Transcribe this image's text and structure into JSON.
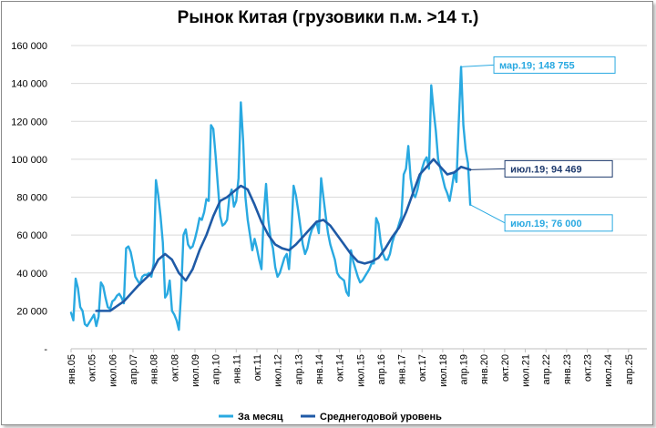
{
  "chart_data": {
    "type": "line",
    "title": "Рынок Китая (грузовики п.м. >14 т.)",
    "xlabel": "",
    "ylabel": "",
    "ylim": [
      0,
      160000
    ],
    "y_ticks": [
      "-",
      "20 000",
      "40 000",
      "60 000",
      "80 000",
      "100 000",
      "120 000",
      "140 000",
      "160 000"
    ],
    "x_tick_labels": [
      "янв.05",
      "окт.05",
      "июл.06",
      "апр.07",
      "янв.08",
      "окт.08",
      "июл.09",
      "апр.10",
      "янв.11",
      "окт.11",
      "июл.12",
      "апр.13",
      "янв.14",
      "окт.14",
      "июл.15",
      "апр.16",
      "янв.17",
      "окт.17",
      "июл.18",
      "апр.19",
      "янв.20",
      "окт.20",
      "июл.21",
      "апр.22",
      "янв.23",
      "окт.23",
      "июл.24",
      "апр.25"
    ],
    "grid": true,
    "legend_position": "bottom",
    "colors": {
      "monthly": "#29a9e1",
      "average": "#1f5aa6"
    },
    "series": [
      {
        "name": "За месяц",
        "points": [
          [
            "2005-01",
            19000
          ],
          [
            "2005-02",
            15000
          ],
          [
            "2005-03",
            37000
          ],
          [
            "2005-04",
            32000
          ],
          [
            "2005-05",
            22000
          ],
          [
            "2005-06",
            20000
          ],
          [
            "2005-07",
            13000
          ],
          [
            "2005-08",
            12000
          ],
          [
            "2005-09",
            14000
          ],
          [
            "2005-10",
            16000
          ],
          [
            "2005-11",
            18000
          ],
          [
            "2005-12",
            12000
          ],
          [
            "2006-01",
            17000
          ],
          [
            "2006-02",
            35000
          ],
          [
            "2006-03",
            33000
          ],
          [
            "2006-04",
            27000
          ],
          [
            "2006-05",
            22000
          ],
          [
            "2006-06",
            21000
          ],
          [
            "2006-07",
            25000
          ],
          [
            "2006-08",
            26000
          ],
          [
            "2006-09",
            28000
          ],
          [
            "2006-10",
            29000
          ],
          [
            "2006-11",
            27000
          ],
          [
            "2006-12",
            24000
          ],
          [
            "2007-01",
            53000
          ],
          [
            "2007-02",
            54000
          ],
          [
            "2007-03",
            51000
          ],
          [
            "2007-04",
            45000
          ],
          [
            "2007-05",
            38000
          ],
          [
            "2007-06",
            36000
          ],
          [
            "2007-07",
            34000
          ],
          [
            "2007-08",
            38000
          ],
          [
            "2007-09",
            39000
          ],
          [
            "2007-10",
            39000
          ],
          [
            "2007-11",
            40000
          ],
          [
            "2007-12",
            38000
          ],
          [
            "2008-01",
            45000
          ],
          [
            "2008-02",
            89000
          ],
          [
            "2008-03",
            81000
          ],
          [
            "2008-04",
            70000
          ],
          [
            "2008-05",
            56000
          ],
          [
            "2008-06",
            27000
          ],
          [
            "2008-07",
            29000
          ],
          [
            "2008-08",
            36000
          ],
          [
            "2008-09",
            20000
          ],
          [
            "2008-10",
            18000
          ],
          [
            "2008-11",
            15000
          ],
          [
            "2008-12",
            10000
          ],
          [
            "2009-01",
            30000
          ],
          [
            "2009-02",
            60000
          ],
          [
            "2009-03",
            63000
          ],
          [
            "2009-04",
            55000
          ],
          [
            "2009-05",
            53000
          ],
          [
            "2009-06",
            54000
          ],
          [
            "2009-07",
            58000
          ],
          [
            "2009-08",
            63000
          ],
          [
            "2009-09",
            69000
          ],
          [
            "2009-10",
            68000
          ],
          [
            "2009-11",
            72000
          ],
          [
            "2009-12",
            79000
          ],
          [
            "2010-01",
            78000
          ],
          [
            "2010-02",
            118000
          ],
          [
            "2010-03",
            116000
          ],
          [
            "2010-04",
            102000
          ],
          [
            "2010-05",
            86000
          ],
          [
            "2010-06",
            70000
          ],
          [
            "2010-07",
            65000
          ],
          [
            "2010-08",
            66000
          ],
          [
            "2010-09",
            68000
          ],
          [
            "2010-10",
            80000
          ],
          [
            "2010-11",
            84000
          ],
          [
            "2010-12",
            75000
          ],
          [
            "2011-01",
            78000
          ],
          [
            "2011-02",
            90000
          ],
          [
            "2011-03",
            130000
          ],
          [
            "2011-04",
            110000
          ],
          [
            "2011-05",
            80000
          ],
          [
            "2011-06",
            68000
          ],
          [
            "2011-07",
            60000
          ],
          [
            "2011-08",
            52000
          ],
          [
            "2011-09",
            58000
          ],
          [
            "2011-10",
            53000
          ],
          [
            "2011-11",
            47000
          ],
          [
            "2011-12",
            42000
          ],
          [
            "2012-01",
            71000
          ],
          [
            "2012-02",
            87000
          ],
          [
            "2012-03",
            68000
          ],
          [
            "2012-04",
            58000
          ],
          [
            "2012-05",
            53000
          ],
          [
            "2012-06",
            43000
          ],
          [
            "2012-07",
            38000
          ],
          [
            "2012-08",
            40000
          ],
          [
            "2012-09",
            44000
          ],
          [
            "2012-10",
            48000
          ],
          [
            "2012-11",
            50000
          ],
          [
            "2012-12",
            42000
          ],
          [
            "2013-01",
            60000
          ],
          [
            "2013-02",
            86000
          ],
          [
            "2013-03",
            81000
          ],
          [
            "2013-04",
            73000
          ],
          [
            "2013-05",
            64000
          ],
          [
            "2013-06",
            55000
          ],
          [
            "2013-07",
            50000
          ],
          [
            "2013-08",
            53000
          ],
          [
            "2013-09",
            59000
          ],
          [
            "2013-10",
            63000
          ],
          [
            "2013-11",
            65000
          ],
          [
            "2013-12",
            67000
          ],
          [
            "2014-01",
            61000
          ],
          [
            "2014-02",
            90000
          ],
          [
            "2014-03",
            80000
          ],
          [
            "2014-04",
            70000
          ],
          [
            "2014-05",
            61000
          ],
          [
            "2014-06",
            55000
          ],
          [
            "2014-07",
            51000
          ],
          [
            "2014-08",
            47000
          ],
          [
            "2014-09",
            40000
          ],
          [
            "2014-10",
            38000
          ],
          [
            "2014-11",
            37000
          ],
          [
            "2014-12",
            36000
          ],
          [
            "2015-01",
            30000
          ],
          [
            "2015-02",
            28000
          ],
          [
            "2015-03",
            52000
          ],
          [
            "2015-04",
            46000
          ],
          [
            "2015-05",
            42000
          ],
          [
            "2015-06",
            38000
          ],
          [
            "2015-07",
            35000
          ],
          [
            "2015-08",
            36000
          ],
          [
            "2015-09",
            38000
          ],
          [
            "2015-10",
            40000
          ],
          [
            "2015-11",
            42000
          ],
          [
            "2015-12",
            45000
          ],
          [
            "2016-01",
            45000
          ],
          [
            "2016-02",
            69000
          ],
          [
            "2016-03",
            66000
          ],
          [
            "2016-04",
            56000
          ],
          [
            "2016-05",
            50000
          ],
          [
            "2016-06",
            47000
          ],
          [
            "2016-07",
            47000
          ],
          [
            "2016-08",
            50000
          ],
          [
            "2016-09",
            56000
          ],
          [
            "2016-10",
            60000
          ],
          [
            "2016-11",
            62000
          ],
          [
            "2016-12",
            66000
          ],
          [
            "2017-01",
            70000
          ],
          [
            "2017-02",
            92000
          ],
          [
            "2017-03",
            95000
          ],
          [
            "2017-04",
            107000
          ],
          [
            "2017-05",
            90000
          ],
          [
            "2017-06",
            82000
          ],
          [
            "2017-07",
            80000
          ],
          [
            "2017-08",
            84000
          ],
          [
            "2017-09",
            90000
          ],
          [
            "2017-10",
            95000
          ],
          [
            "2017-11",
            99000
          ],
          [
            "2017-12",
            101000
          ],
          [
            "2018-01",
            95000
          ],
          [
            "2018-02",
            139000
          ],
          [
            "2018-03",
            126000
          ],
          [
            "2018-04",
            115000
          ],
          [
            "2018-05",
            100000
          ],
          [
            "2018-06",
            95000
          ],
          [
            "2018-07",
            90000
          ],
          [
            "2018-08",
            85000
          ],
          [
            "2018-09",
            82000
          ],
          [
            "2018-10",
            78000
          ],
          [
            "2018-11",
            85000
          ],
          [
            "2018-12",
            93000
          ],
          [
            "2019-01",
            88000
          ],
          [
            "2019-02",
            120000
          ],
          [
            "2019-03",
            148755
          ],
          [
            "2019-04",
            118000
          ],
          [
            "2019-05",
            105000
          ],
          [
            "2019-06",
            98000
          ],
          [
            "2019-07",
            76000
          ]
        ]
      },
      {
        "name": "Среднегодовой уровень",
        "points": [
          [
            "2005-12",
            20000
          ],
          [
            "2006-06",
            20000
          ],
          [
            "2006-12",
            25000
          ],
          [
            "2007-06",
            33000
          ],
          [
            "2007-12",
            40000
          ],
          [
            "2008-03",
            47000
          ],
          [
            "2008-06",
            50000
          ],
          [
            "2008-09",
            47000
          ],
          [
            "2008-12",
            40000
          ],
          [
            "2009-03",
            36000
          ],
          [
            "2009-06",
            42000
          ],
          [
            "2009-09",
            52000
          ],
          [
            "2009-12",
            60000
          ],
          [
            "2010-03",
            70000
          ],
          [
            "2010-06",
            78000
          ],
          [
            "2010-09",
            80000
          ],
          [
            "2010-12",
            83000
          ],
          [
            "2011-03",
            86000
          ],
          [
            "2011-06",
            84000
          ],
          [
            "2011-09",
            76000
          ],
          [
            "2011-12",
            67000
          ],
          [
            "2012-03",
            60000
          ],
          [
            "2012-06",
            55000
          ],
          [
            "2012-09",
            53000
          ],
          [
            "2012-12",
            52000
          ],
          [
            "2013-03",
            55000
          ],
          [
            "2013-06",
            59000
          ],
          [
            "2013-09",
            63000
          ],
          [
            "2013-12",
            67000
          ],
          [
            "2014-03",
            68000
          ],
          [
            "2014-06",
            65000
          ],
          [
            "2014-09",
            60000
          ],
          [
            "2014-12",
            55000
          ],
          [
            "2015-03",
            50000
          ],
          [
            "2015-06",
            46000
          ],
          [
            "2015-09",
            45000
          ],
          [
            "2015-12",
            46000
          ],
          [
            "2016-03",
            48000
          ],
          [
            "2016-06",
            53000
          ],
          [
            "2016-09",
            59000
          ],
          [
            "2016-12",
            64000
          ],
          [
            "2017-03",
            72000
          ],
          [
            "2017-06",
            82000
          ],
          [
            "2017-09",
            92000
          ],
          [
            "2017-12",
            96000
          ],
          [
            "2018-03",
            100000
          ],
          [
            "2018-06",
            96000
          ],
          [
            "2018-09",
            92000
          ],
          [
            "2018-12",
            93000
          ],
          [
            "2019-03",
            96000
          ],
          [
            "2019-07",
            94469
          ]
        ]
      }
    ],
    "annotations": [
      {
        "series": "За месяц",
        "date": "2019-03",
        "value": 148755,
        "label": "мар.19;  148 755",
        "color": "#29a9e1"
      },
      {
        "series": "Среднегодовой уровень",
        "date": "2019-07",
        "value": 94469,
        "label": "июл.19;  94 469",
        "color": "#1f3b6e"
      },
      {
        "series": "За месяц",
        "date": "2019-07",
        "value": 76000,
        "label": "июл.19;  76 000",
        "color": "#29a9e1"
      }
    ]
  },
  "legend": [
    {
      "label": "За месяц",
      "color": "#29a9e1"
    },
    {
      "label": "Среднегодовой уровень",
      "color": "#1f5aa6"
    }
  ]
}
